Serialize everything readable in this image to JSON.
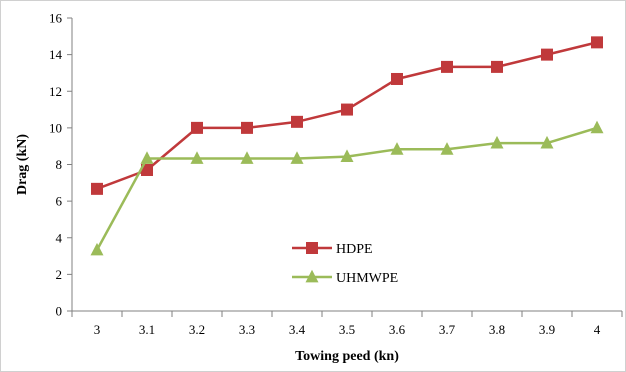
{
  "chart_data": {
    "type": "line",
    "title": "",
    "xlabel": "Towing peed (kn)",
    "ylabel": "Drag (kN)",
    "ylim": [
      0,
      16
    ],
    "yticks": [
      0,
      2,
      4,
      6,
      8,
      10,
      12,
      14,
      16
    ],
    "categories": [
      "3",
      "3.1",
      "3.2",
      "3.3",
      "3.4",
      "3.5",
      "3.6",
      "3.7",
      "3.8",
      "3.9",
      "4"
    ],
    "grid": false,
    "legend_position": "lower-center",
    "series": [
      {
        "name": "HDPE",
        "color": "#c0393b",
        "marker": "square",
        "values": [
          6.67,
          7.7,
          10.0,
          10.0,
          10.33,
          11.0,
          12.67,
          13.33,
          13.33,
          14.0,
          14.67
        ]
      },
      {
        "name": "UHMWPE",
        "color": "#9bbb59",
        "marker": "triangle",
        "values": [
          3.33,
          8.33,
          8.33,
          8.33,
          8.33,
          8.43,
          8.83,
          8.83,
          9.17,
          9.17,
          10.0
        ]
      }
    ]
  }
}
